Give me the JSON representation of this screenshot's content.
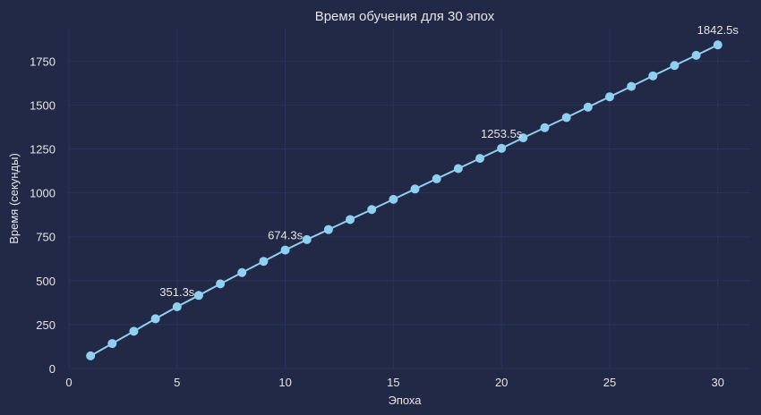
{
  "chart_data": {
    "type": "line",
    "title": "Время обучения для 30 эпох",
    "xlabel": "Эпоха",
    "ylabel": "Время (секунды)",
    "xlim": [
      0,
      31.5
    ],
    "ylim": [
      0,
      1935
    ],
    "xticks": [
      0,
      5,
      10,
      15,
      20,
      25,
      30
    ],
    "yticks": [
      0,
      250,
      500,
      750,
      1000,
      1250,
      1500,
      1750
    ],
    "grid": true,
    "colors": {
      "background": "#212946",
      "grid": "#2A3459",
      "line": "#8FCFF0",
      "text": "#e6e6e6"
    },
    "series": [
      {
        "x": [
          1,
          2,
          3,
          4,
          5,
          6,
          7,
          8,
          9,
          10,
          11,
          12,
          13,
          14,
          15,
          16,
          17,
          18,
          19,
          20,
          21,
          22,
          23,
          24,
          25,
          26,
          27,
          28,
          29,
          30
        ],
        "values": [
          72,
          142,
          212,
          283,
          351.3,
          416,
          482,
          546,
          610,
          674.3,
          734,
          791,
          848,
          905,
          963,
          1022,
          1080,
          1138,
          1196,
          1253.5,
          1313,
          1371,
          1429,
          1488,
          1547,
          1606,
          1666,
          1725,
          1783,
          1842.5
        ]
      }
    ],
    "annotations": [
      {
        "x": 5,
        "y": 351.3,
        "text": "351.3s"
      },
      {
        "x": 10,
        "y": 674.3,
        "text": "674.3s"
      },
      {
        "x": 20,
        "y": 1253.5,
        "text": "1253.5s"
      },
      {
        "x": 30,
        "y": 1842.5,
        "text": "1842.5s"
      }
    ]
  }
}
